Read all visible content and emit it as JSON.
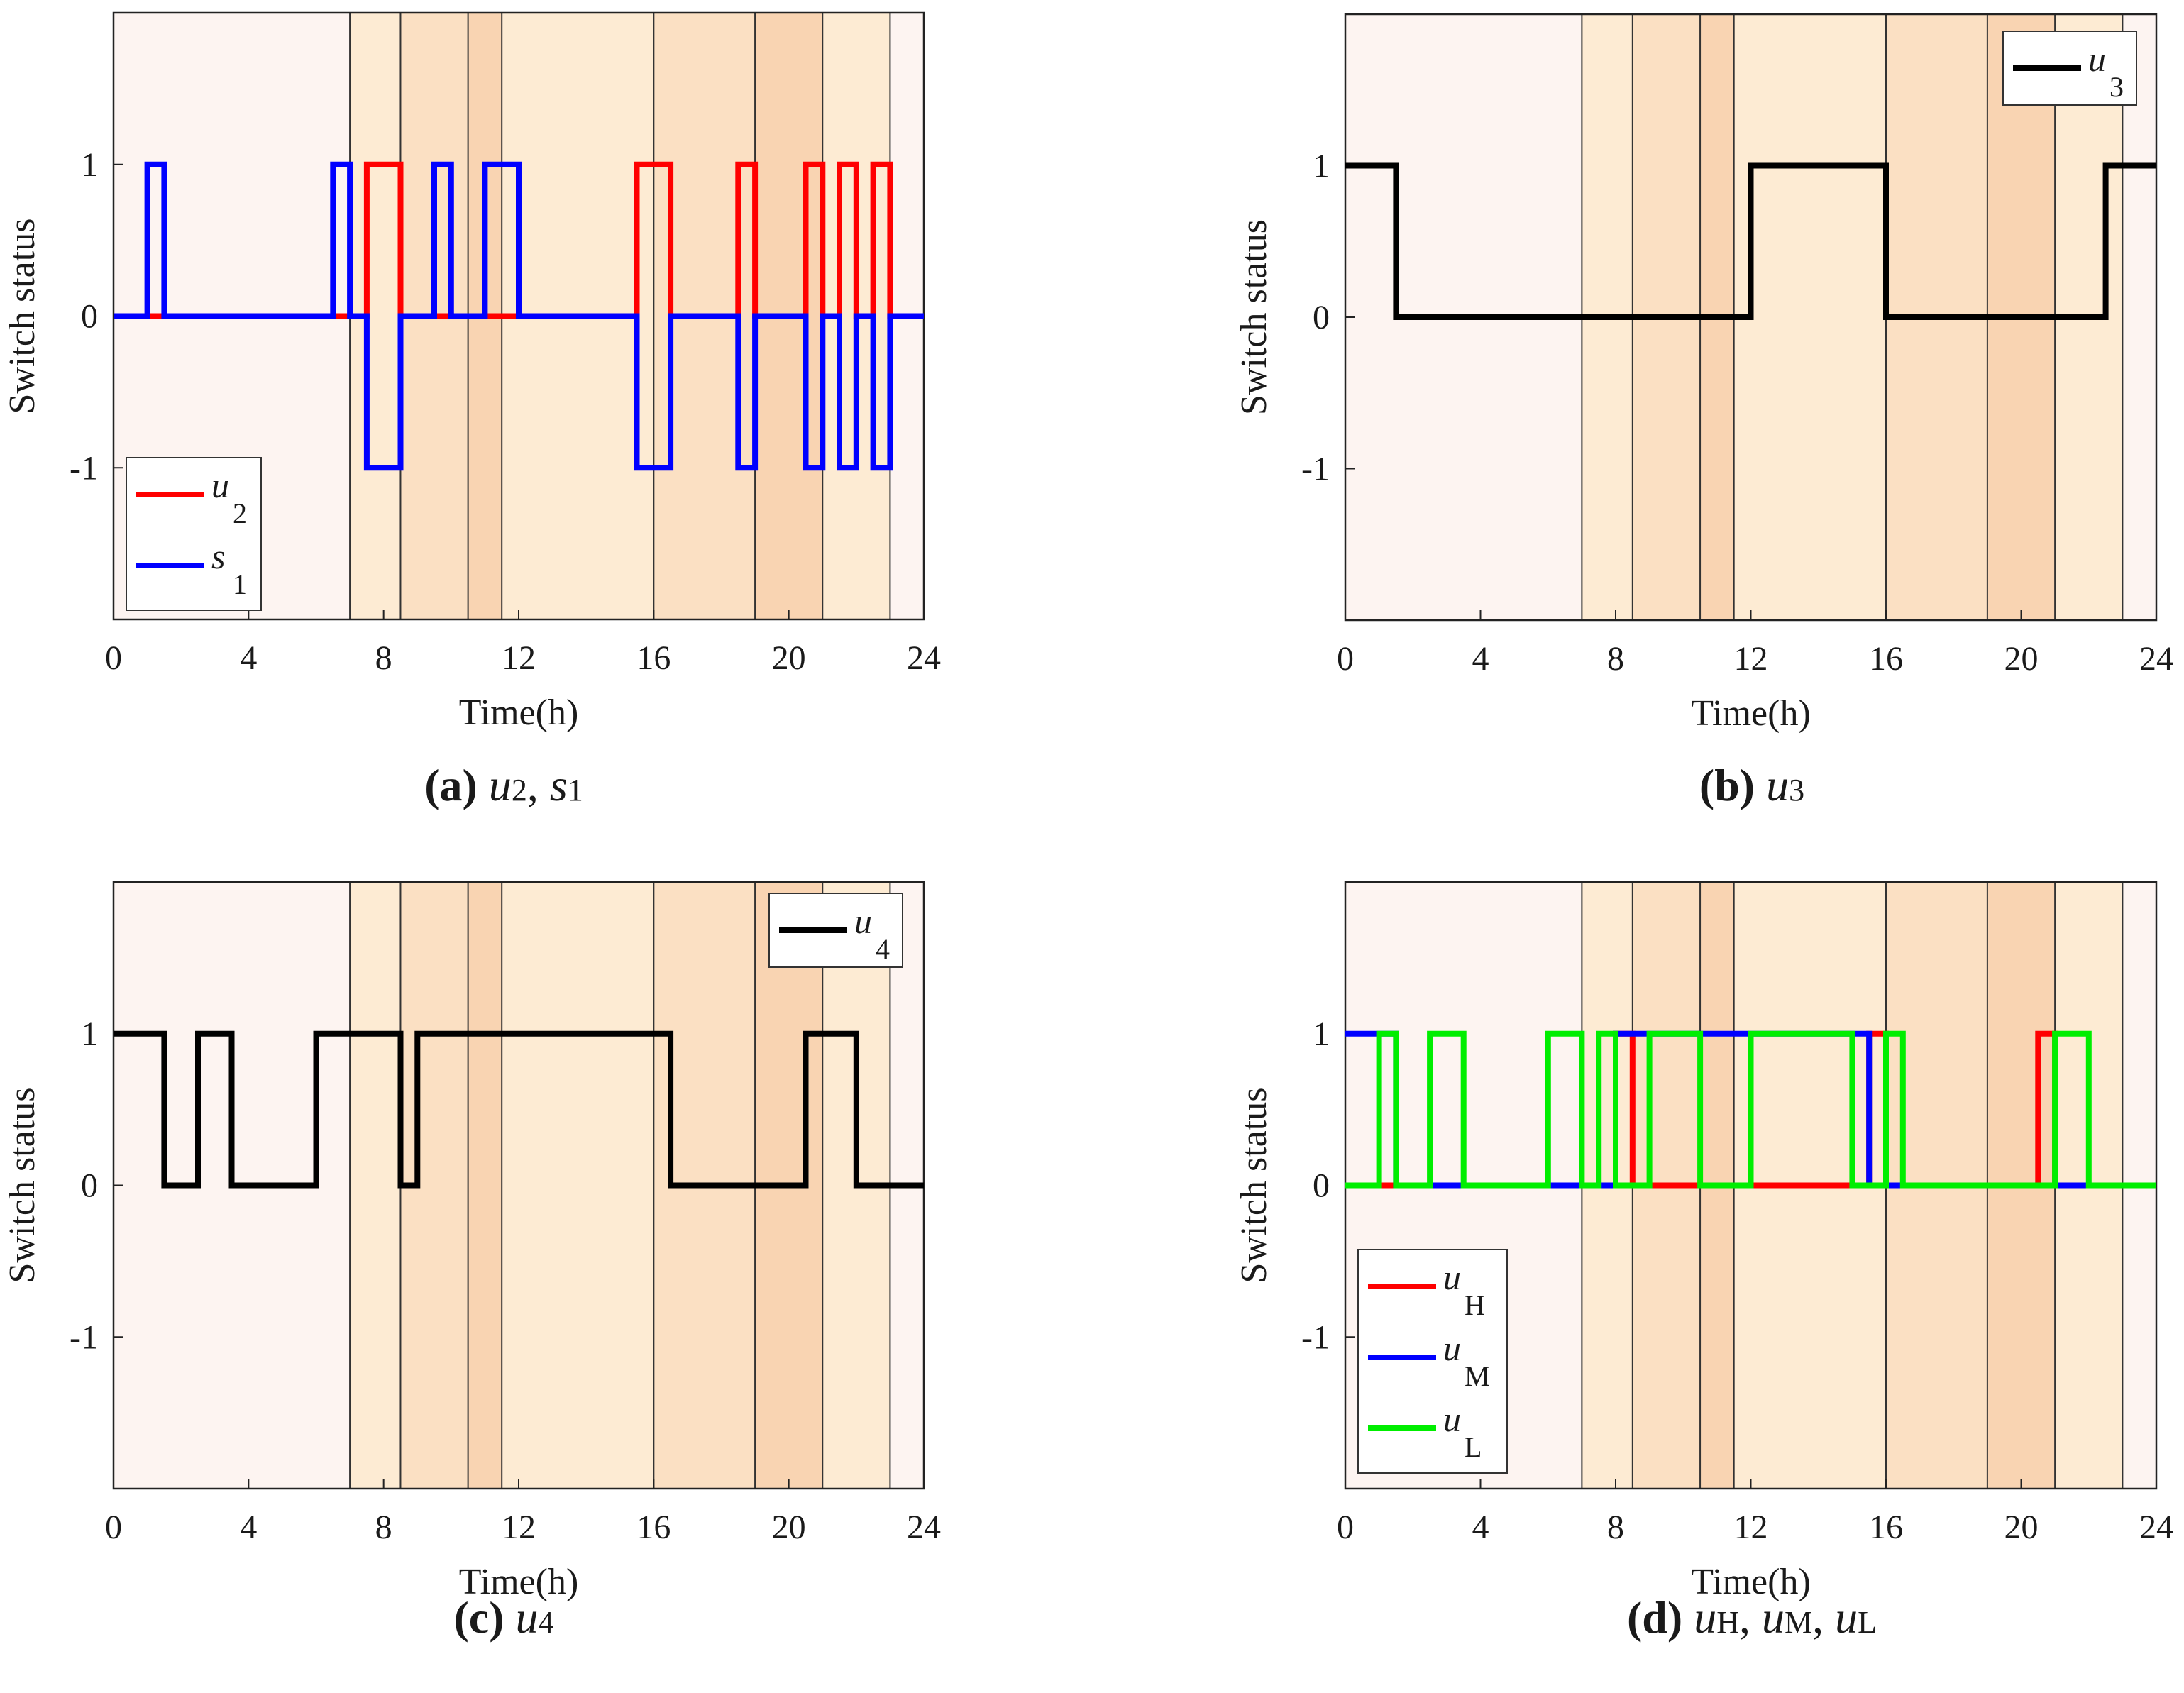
{
  "bands": [
    {
      "start": 0,
      "end": 7,
      "color": "#fdf4f1"
    },
    {
      "start": 7,
      "end": 8.5,
      "color": "#fdebd3"
    },
    {
      "start": 8.5,
      "end": 10.5,
      "color": "#fbe0c3"
    },
    {
      "start": 10.5,
      "end": 11.5,
      "color": "#f9d4b2"
    },
    {
      "start": 11.5,
      "end": 16,
      "color": "#fdebd3"
    },
    {
      "start": 16,
      "end": 19,
      "color": "#fbe0c3"
    },
    {
      "start": 19,
      "end": 21,
      "color": "#f9d4b2"
    },
    {
      "start": 21,
      "end": 23,
      "color": "#fdebd3"
    },
    {
      "start": 23,
      "end": 24,
      "color": "#fdf4f1"
    }
  ],
  "chart_data": [
    {
      "type": "line",
      "id": "a",
      "caption": {
        "letter": "(a)",
        "parts": [
          {
            "v": "u",
            "s": "2"
          },
          {
            "v": "s",
            "s": "1"
          }
        ]
      },
      "xlabel": "Time(h)",
      "ylabel": "Switch status",
      "xlim": [
        0,
        24
      ],
      "ylim": [
        -2,
        2
      ],
      "xticks": [
        "0",
        "4",
        "8",
        "12",
        "16",
        "20",
        "24"
      ],
      "yticks": [
        "1",
        "0",
        "-1"
      ],
      "legend_position": "bottom-left",
      "series": [
        {
          "name": "u",
          "sub": "2",
          "color": "#ff0000",
          "points": [
            [
              0,
              0
            ],
            [
              7.5,
              0
            ],
            [
              7.5,
              1
            ],
            [
              8.5,
              1
            ],
            [
              8.5,
              0
            ],
            [
              15.5,
              0
            ],
            [
              15.5,
              1
            ],
            [
              16.5,
              1
            ],
            [
              16.5,
              0
            ],
            [
              18.5,
              0
            ],
            [
              18.5,
              1
            ],
            [
              19,
              1
            ],
            [
              19,
              0
            ],
            [
              20.5,
              0
            ],
            [
              20.5,
              1
            ],
            [
              21,
              1
            ],
            [
              21,
              0
            ],
            [
              21.5,
              0
            ],
            [
              21.5,
              1
            ],
            [
              22,
              1
            ],
            [
              22,
              0
            ],
            [
              22.5,
              0
            ],
            [
              22.5,
              1
            ],
            [
              23,
              1
            ],
            [
              23,
              0
            ],
            [
              24,
              0
            ]
          ]
        },
        {
          "name": "s",
          "sub": "1",
          "color": "#0000ff",
          "points": [
            [
              0,
              0
            ],
            [
              1,
              0
            ],
            [
              1,
              1
            ],
            [
              1.5,
              1
            ],
            [
              1.5,
              0
            ],
            [
              6.5,
              0
            ],
            [
              6.5,
              1
            ],
            [
              7,
              1
            ],
            [
              7,
              0
            ],
            [
              7.5,
              0
            ],
            [
              7.5,
              -1
            ],
            [
              8.5,
              -1
            ],
            [
              8.5,
              0
            ],
            [
              9.5,
              0
            ],
            [
              9.5,
              1
            ],
            [
              10,
              1
            ],
            [
              10,
              0
            ],
            [
              11,
              0
            ],
            [
              11,
              1
            ],
            [
              12,
              1
            ],
            [
              12,
              0
            ],
            [
              15.5,
              0
            ],
            [
              15.5,
              -1
            ],
            [
              16.5,
              -1
            ],
            [
              16.5,
              0
            ],
            [
              18.5,
              0
            ],
            [
              18.5,
              -1
            ],
            [
              19,
              -1
            ],
            [
              19,
              0
            ],
            [
              20.5,
              0
            ],
            [
              20.5,
              -1
            ],
            [
              21,
              -1
            ],
            [
              21,
              0
            ],
            [
              21.5,
              0
            ],
            [
              21.5,
              -1
            ],
            [
              22,
              -1
            ],
            [
              22,
              0
            ],
            [
              22.5,
              0
            ],
            [
              22.5,
              -1
            ],
            [
              23,
              -1
            ],
            [
              23,
              0
            ],
            [
              24,
              0
            ]
          ]
        }
      ]
    },
    {
      "type": "line",
      "id": "b",
      "caption": {
        "letter": "(b)",
        "parts": [
          {
            "v": "u",
            "s": "3"
          }
        ]
      },
      "xlabel": "Time(h)",
      "ylabel": "Switch status",
      "xlim": [
        0,
        24
      ],
      "ylim": [
        -2,
        2
      ],
      "xticks": [
        "0",
        "4",
        "8",
        "12",
        "16",
        "20",
        "24"
      ],
      "yticks": [
        "1",
        "0",
        "-1"
      ],
      "legend_position": "top-right",
      "series": [
        {
          "name": "u",
          "sub": "3",
          "color": "#000000",
          "points": [
            [
              0,
              1
            ],
            [
              1.5,
              1
            ],
            [
              1.5,
              0
            ],
            [
              12,
              0
            ],
            [
              12,
              1
            ],
            [
              16,
              1
            ],
            [
              16,
              0
            ],
            [
              22.5,
              0
            ],
            [
              22.5,
              1
            ],
            [
              24,
              1
            ]
          ]
        }
      ]
    },
    {
      "type": "line",
      "id": "c",
      "caption": {
        "letter": "(c)",
        "parts": [
          {
            "v": "u",
            "s": "4"
          }
        ]
      },
      "xlabel": "Time(h)",
      "ylabel": "Switch status",
      "xlim": [
        0,
        24
      ],
      "ylim": [
        -2,
        2
      ],
      "xticks": [
        "0",
        "4",
        "8",
        "12",
        "16",
        "20",
        "24"
      ],
      "yticks": [
        "1",
        "0",
        "-1"
      ],
      "legend_position": "top-right",
      "series": [
        {
          "name": "u",
          "sub": "4",
          "color": "#000000",
          "points": [
            [
              0,
              1
            ],
            [
              1.5,
              1
            ],
            [
              1.5,
              0
            ],
            [
              2.5,
              0
            ],
            [
              2.5,
              1
            ],
            [
              3.5,
              1
            ],
            [
              3.5,
              0
            ],
            [
              6,
              0
            ],
            [
              6,
              1
            ],
            [
              8.5,
              1
            ],
            [
              8.5,
              0
            ],
            [
              9,
              0
            ],
            [
              9,
              1
            ],
            [
              16.5,
              1
            ],
            [
              16.5,
              0
            ],
            [
              20.5,
              0
            ],
            [
              20.5,
              1
            ],
            [
              22,
              1
            ],
            [
              22,
              0
            ],
            [
              24,
              0
            ]
          ]
        }
      ]
    },
    {
      "type": "line",
      "id": "d",
      "caption": {
        "letter": "(d)",
        "parts": [
          {
            "v": "u",
            "s": "H"
          },
          {
            "v": "u",
            "s": "M"
          },
          {
            "v": "u",
            "s": "L"
          }
        ]
      },
      "xlabel": "Time(h)",
      "ylabel": "Switch status",
      "xlim": [
        0,
        24
      ],
      "ylim": [
        -2,
        2
      ],
      "xticks": [
        "0",
        "4",
        "8",
        "12",
        "16",
        "20",
        "24"
      ],
      "yticks": [
        "1",
        "0",
        "-1"
      ],
      "legend_position": "bottom-left",
      "series": [
        {
          "name": "u",
          "sub": "H",
          "color": "#ff0000",
          "points": [
            [
              0,
              0
            ],
            [
              8,
              0
            ],
            [
              8,
              1
            ],
            [
              8.5,
              1
            ],
            [
              8.5,
              0
            ],
            [
              15.5,
              0
            ],
            [
              15.5,
              1
            ],
            [
              16,
              1
            ],
            [
              16,
              0
            ],
            [
              20.5,
              0
            ],
            [
              20.5,
              1
            ],
            [
              21,
              1
            ],
            [
              21,
              0
            ],
            [
              24,
              0
            ]
          ]
        },
        {
          "name": "u",
          "sub": "M",
          "color": "#0000ff",
          "points": [
            [
              0,
              1
            ],
            [
              1.5,
              1
            ],
            [
              1.5,
              0
            ],
            [
              8,
              0
            ],
            [
              8,
              1
            ],
            [
              15.5,
              1
            ],
            [
              15.5,
              0
            ],
            [
              24,
              0
            ]
          ]
        },
        {
          "name": "u",
          "sub": "L",
          "color": "#00ee00",
          "points": [
            [
              0,
              0
            ],
            [
              1,
              0
            ],
            [
              1,
              1
            ],
            [
              1.5,
              1
            ],
            [
              1.5,
              0
            ],
            [
              2.5,
              0
            ],
            [
              2.5,
              1
            ],
            [
              3.5,
              1
            ],
            [
              3.5,
              0
            ],
            [
              6,
              0
            ],
            [
              6,
              1
            ],
            [
              7,
              1
            ],
            [
              7,
              0
            ],
            [
              7.5,
              0
            ],
            [
              7.5,
              1
            ],
            [
              8,
              1
            ],
            [
              8,
              0
            ],
            [
              9,
              0
            ],
            [
              9,
              1
            ],
            [
              10.5,
              1
            ],
            [
              10.5,
              0
            ],
            [
              12,
              0
            ],
            [
              12,
              1
            ],
            [
              15,
              1
            ],
            [
              15,
              0
            ],
            [
              16,
              0
            ],
            [
              16,
              1
            ],
            [
              16.5,
              1
            ],
            [
              16.5,
              0
            ],
            [
              21,
              0
            ],
            [
              21,
              1
            ],
            [
              22,
              1
            ],
            [
              22,
              0
            ],
            [
              24,
              0
            ]
          ]
        }
      ]
    }
  ]
}
